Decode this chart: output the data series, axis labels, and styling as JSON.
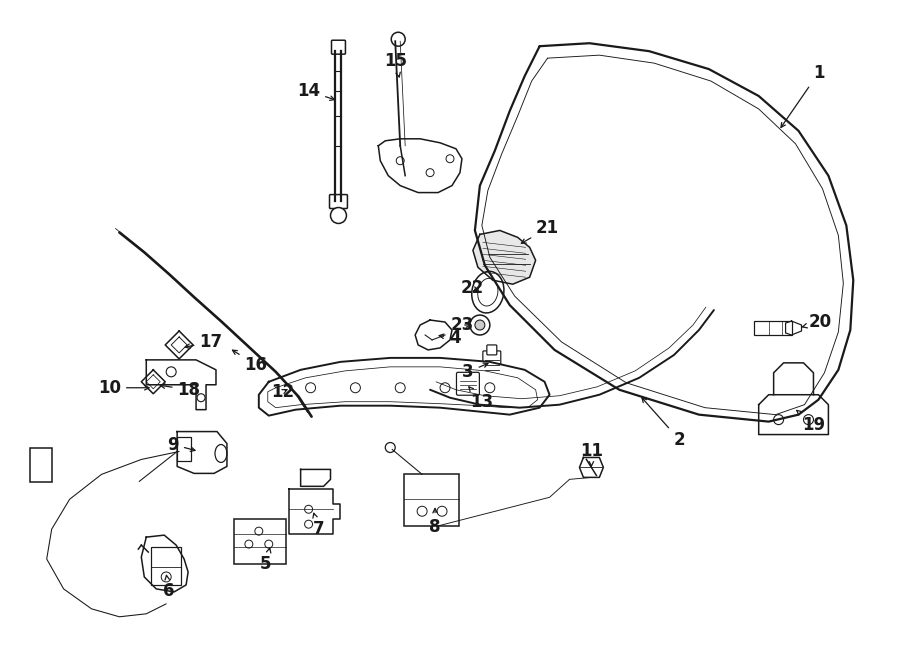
{
  "bg_color": "#ffffff",
  "line_color": "#1a1a1a",
  "fig_width": 9.0,
  "fig_height": 6.61,
  "dpi": 100,
  "lw": 1.1
}
